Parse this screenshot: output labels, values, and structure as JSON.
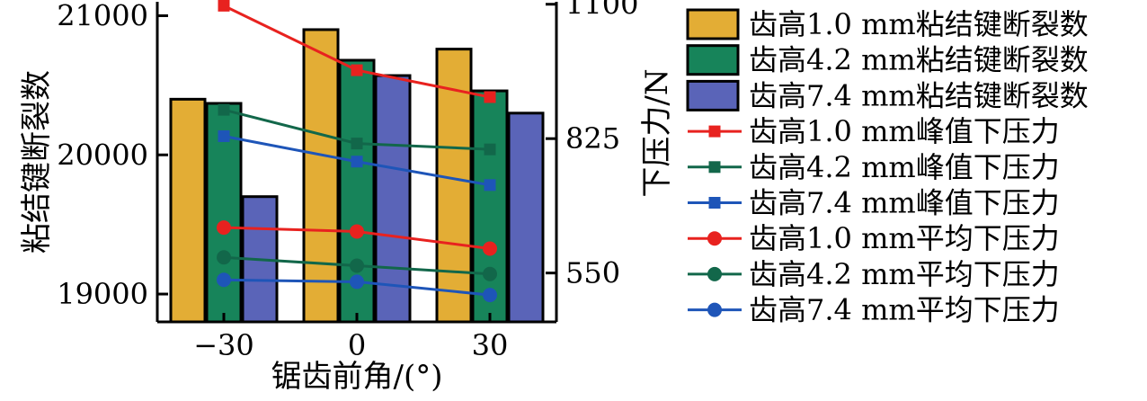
{
  "chart_data": {
    "type": "bar",
    "categories": [
      "-30",
      "0",
      "30"
    ],
    "xlabel": "锯齿前角/(°)",
    "ylabel_left": "粘结键断裂数",
    "ylabel_right": "下压力/N",
    "ylim_left": [
      18800,
      21100
    ],
    "ylim_right": [
      450,
      1105
    ],
    "yticks_left": [
      "19000",
      "20000",
      "21000"
    ],
    "yticks_right": [
      "550",
      "825",
      "1100"
    ],
    "xtick_labels": [
      "−30",
      "0",
      "30"
    ],
    "bar_series": [
      {
        "name": "齿高1.0 mm粘结键断裂数",
        "color": "#e3ad35",
        "values": [
          20400,
          20900,
          20760
        ]
      },
      {
        "name": "齿高4.2 mm粘结键断裂数",
        "color": "#17845a",
        "values": [
          20370,
          20680,
          20460
        ]
      },
      {
        "name": "齿高7.4 mm粘结键断裂数",
        "color": "#5a64b8",
        "values": [
          19700,
          20570,
          20300
        ]
      }
    ],
    "line_series": [
      {
        "name": "齿高1.0 mm峰值下压力",
        "color": "#e8221f",
        "marker": "square",
        "values": [
          1097,
          965,
          910
        ]
      },
      {
        "name": "齿高4.2 mm峰值下压力",
        "color": "#12674a",
        "marker": "square",
        "values": [
          884,
          815,
          803
        ]
      },
      {
        "name": "齿高7.4 mm峰值下压力",
        "color": "#1e55b8",
        "marker": "square",
        "values": [
          830,
          778,
          730
        ]
      },
      {
        "name": "齿高1.0 mm平均下压力",
        "color": "#e8221f",
        "marker": "circle",
        "values": [
          643,
          635,
          600
        ]
      },
      {
        "name": "齿高4.2 mm平均下压力",
        "color": "#12674a",
        "marker": "circle",
        "values": [
          582,
          565,
          548
        ]
      },
      {
        "name": "齿高7.4 mm平均下压力",
        "color": "#1e55b8",
        "marker": "circle",
        "values": [
          536,
          532,
          505
        ]
      }
    ],
    "legend_position": "right"
  }
}
